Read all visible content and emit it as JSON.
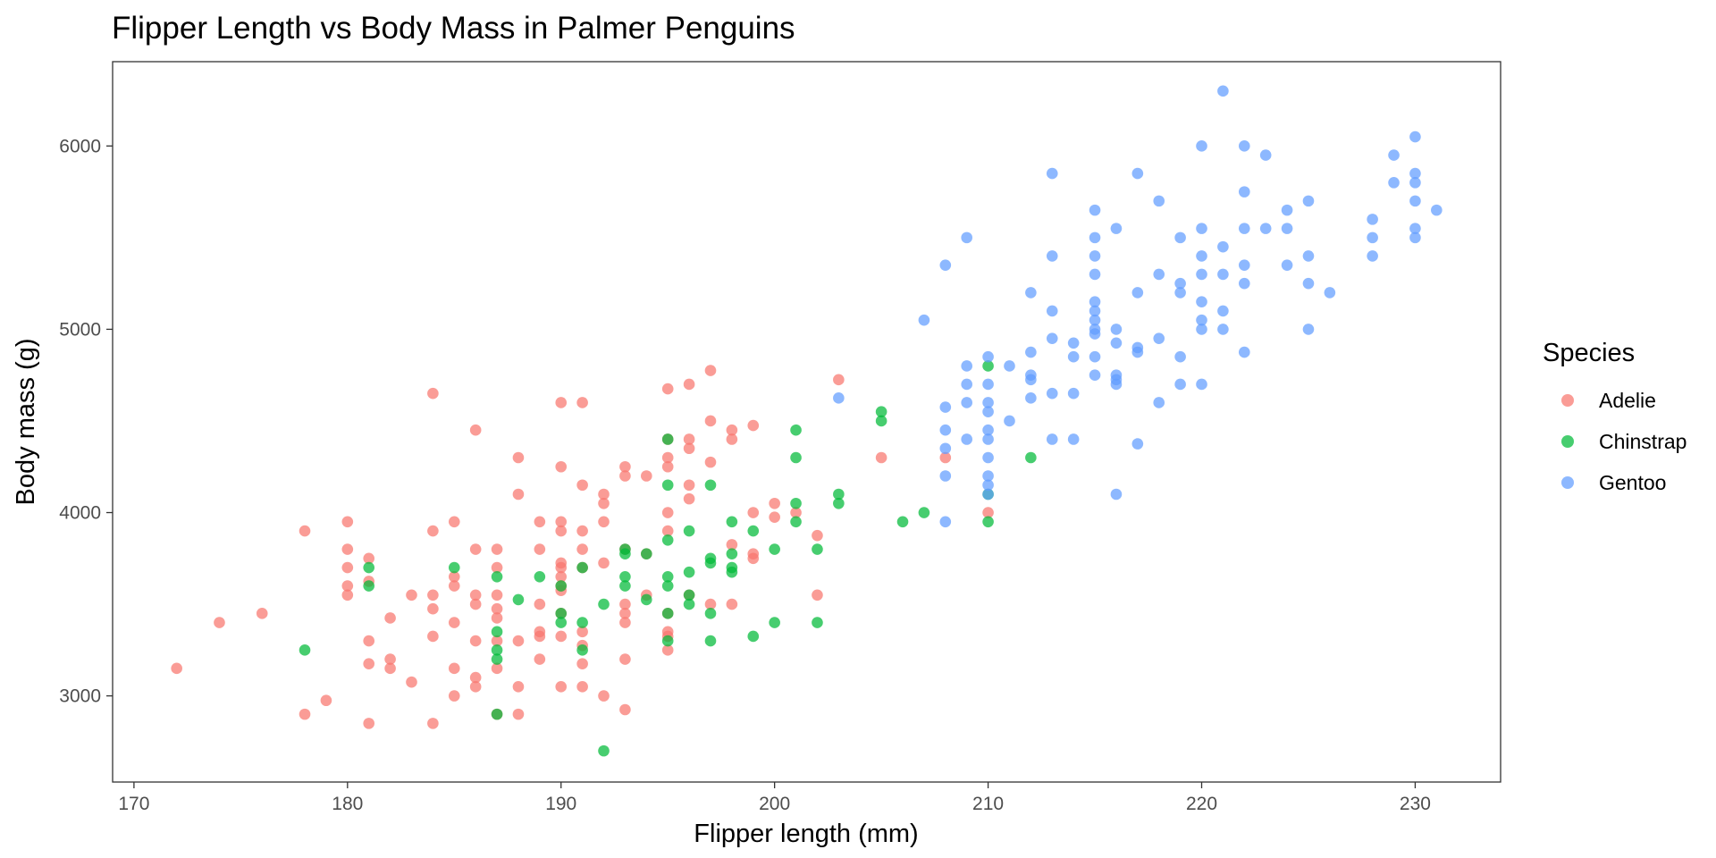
{
  "chart_data": {
    "type": "scatter",
    "title": "Flipper Length vs Body Mass in Palmer Penguins",
    "xlabel": "Flipper length (mm)",
    "ylabel": "Body mass (g)",
    "xlim": [
      169,
      234
    ],
    "ylim": [
      2530,
      6460
    ],
    "xticks": [
      170,
      180,
      190,
      200,
      210,
      220,
      230
    ],
    "yticks": [
      3000,
      4000,
      5000,
      6000
    ],
    "grid": false,
    "legend": {
      "title": "Species",
      "placement": "right"
    },
    "series": [
      {
        "name": "Adelie",
        "color": "#F8766D",
        "points": [
          [
            172,
            3150
          ],
          [
            174,
            3400
          ],
          [
            176,
            3450
          ],
          [
            178,
            3900
          ],
          [
            178,
            2900
          ],
          [
            179,
            2975
          ],
          [
            180,
            3950
          ],
          [
            180,
            3800
          ],
          [
            180,
            3700
          ],
          [
            180,
            3600
          ],
          [
            180,
            3550
          ],
          [
            181,
            3750
          ],
          [
            181,
            3625
          ],
          [
            181,
            3300
          ],
          [
            181,
            3175
          ],
          [
            181,
            2850
          ],
          [
            182,
            3425
          ],
          [
            182,
            3200
          ],
          [
            182,
            3150
          ],
          [
            183,
            3550
          ],
          [
            183,
            3075
          ],
          [
            184,
            4650
          ],
          [
            184,
            3900
          ],
          [
            184,
            3550
          ],
          [
            184,
            3475
          ],
          [
            184,
            3325
          ],
          [
            184,
            2850
          ],
          [
            185,
            3950
          ],
          [
            185,
            3650
          ],
          [
            185,
            3600
          ],
          [
            185,
            3400
          ],
          [
            185,
            3150
          ],
          [
            185,
            3000
          ],
          [
            186,
            4450
          ],
          [
            186,
            3800
          ],
          [
            186,
            3550
          ],
          [
            186,
            3500
          ],
          [
            186,
            3300
          ],
          [
            186,
            3100
          ],
          [
            186,
            3050
          ],
          [
            187,
            3800
          ],
          [
            187,
            3700
          ],
          [
            187,
            3550
          ],
          [
            187,
            3475
          ],
          [
            187,
            3425
          ],
          [
            187,
            3300
          ],
          [
            187,
            3150
          ],
          [
            187,
            2900
          ],
          [
            188,
            4300
          ],
          [
            188,
            4100
          ],
          [
            188,
            3300
          ],
          [
            188,
            3050
          ],
          [
            188,
            2900
          ],
          [
            189,
            3950
          ],
          [
            189,
            3800
          ],
          [
            189,
            3500
          ],
          [
            189,
            3350
          ],
          [
            189,
            3325
          ],
          [
            189,
            3200
          ],
          [
            190,
            4600
          ],
          [
            190,
            4250
          ],
          [
            190,
            3950
          ],
          [
            190,
            3900
          ],
          [
            190,
            3725
          ],
          [
            190,
            3700
          ],
          [
            190,
            3650
          ],
          [
            190,
            3600
          ],
          [
            190,
            3575
          ],
          [
            190,
            3450
          ],
          [
            190,
            3325
          ],
          [
            190,
            3050
          ],
          [
            191,
            4600
          ],
          [
            191,
            4150
          ],
          [
            191,
            3900
          ],
          [
            191,
            3800
          ],
          [
            191,
            3700
          ],
          [
            191,
            3350
          ],
          [
            191,
            3275
          ],
          [
            191,
            3175
          ],
          [
            191,
            3050
          ],
          [
            192,
            4100
          ],
          [
            192,
            4050
          ],
          [
            192,
            3950
          ],
          [
            192,
            3725
          ],
          [
            192,
            3000
          ],
          [
            193,
            4250
          ],
          [
            193,
            4200
          ],
          [
            193,
            3800
          ],
          [
            193,
            3500
          ],
          [
            193,
            3450
          ],
          [
            193,
            3400
          ],
          [
            193,
            3200
          ],
          [
            193,
            2925
          ],
          [
            194,
            4200
          ],
          [
            194,
            3775
          ],
          [
            194,
            3550
          ],
          [
            195,
            4675
          ],
          [
            195,
            4400
          ],
          [
            195,
            4300
          ],
          [
            195,
            4250
          ],
          [
            195,
            4000
          ],
          [
            195,
            3900
          ],
          [
            195,
            3450
          ],
          [
            195,
            3350
          ],
          [
            195,
            3325
          ],
          [
            195,
            3250
          ],
          [
            196,
            4700
          ],
          [
            196,
            4400
          ],
          [
            196,
            4350
          ],
          [
            196,
            4150
          ],
          [
            196,
            4075
          ],
          [
            196,
            3550
          ],
          [
            197,
            4775
          ],
          [
            197,
            4500
          ],
          [
            197,
            4275
          ],
          [
            197,
            3500
          ],
          [
            198,
            4450
          ],
          [
            198,
            4400
          ],
          [
            198,
            3825
          ],
          [
            198,
            3500
          ],
          [
            199,
            4475
          ],
          [
            199,
            4000
          ],
          [
            199,
            3775
          ],
          [
            199,
            3750
          ],
          [
            200,
            4050
          ],
          [
            200,
            3975
          ],
          [
            201,
            4000
          ],
          [
            202,
            3875
          ],
          [
            202,
            3550
          ],
          [
            203,
            4725
          ],
          [
            205,
            4300
          ],
          [
            208,
            4300
          ],
          [
            210,
            4000
          ]
        ]
      },
      {
        "name": "Chinstrap",
        "color": "#00BA38",
        "points": [
          [
            178,
            3250
          ],
          [
            181,
            3700
          ],
          [
            181,
            3600
          ],
          [
            185,
            3700
          ],
          [
            187,
            3650
          ],
          [
            187,
            3350
          ],
          [
            187,
            3250
          ],
          [
            187,
            3200
          ],
          [
            187,
            2900
          ],
          [
            188,
            3525
          ],
          [
            189,
            3650
          ],
          [
            190,
            3600
          ],
          [
            190,
            3450
          ],
          [
            190,
            3400
          ],
          [
            191,
            3700
          ],
          [
            191,
            3400
          ],
          [
            191,
            3250
          ],
          [
            192,
            3500
          ],
          [
            192,
            2700
          ],
          [
            193,
            3800
          ],
          [
            193,
            3775
          ],
          [
            193,
            3650
          ],
          [
            193,
            3600
          ],
          [
            194,
            3775
          ],
          [
            194,
            3525
          ],
          [
            195,
            4400
          ],
          [
            195,
            4150
          ],
          [
            195,
            3850
          ],
          [
            195,
            3650
          ],
          [
            195,
            3600
          ],
          [
            195,
            3450
          ],
          [
            195,
            3300
          ],
          [
            196,
            3900
          ],
          [
            196,
            3675
          ],
          [
            196,
            3550
          ],
          [
            196,
            3500
          ],
          [
            197,
            4150
          ],
          [
            197,
            3750
          ],
          [
            197,
            3725
          ],
          [
            197,
            3450
          ],
          [
            197,
            3300
          ],
          [
            198,
            3950
          ],
          [
            198,
            3775
          ],
          [
            198,
            3700
          ],
          [
            198,
            3675
          ],
          [
            199,
            3900
          ],
          [
            199,
            3325
          ],
          [
            200,
            3800
          ],
          [
            200,
            3400
          ],
          [
            201,
            4450
          ],
          [
            201,
            4300
          ],
          [
            201,
            4050
          ],
          [
            201,
            3950
          ],
          [
            202,
            3800
          ],
          [
            202,
            3400
          ],
          [
            203,
            4100
          ],
          [
            203,
            4050
          ],
          [
            205,
            4550
          ],
          [
            205,
            4500
          ],
          [
            206,
            3950
          ],
          [
            207,
            4000
          ],
          [
            210,
            4800
          ],
          [
            210,
            4100
          ],
          [
            210,
            3950
          ],
          [
            212,
            4300
          ]
        ]
      },
      {
        "name": "Gentoo",
        "color": "#619CFF",
        "points": [
          [
            203,
            4625
          ],
          [
            207,
            5050
          ],
          [
            208,
            5350
          ],
          [
            208,
            4575
          ],
          [
            208,
            4450
          ],
          [
            208,
            4350
          ],
          [
            208,
            4200
          ],
          [
            208,
            3950
          ],
          [
            209,
            5500
          ],
          [
            209,
            4800
          ],
          [
            209,
            4700
          ],
          [
            209,
            4600
          ],
          [
            209,
            4400
          ],
          [
            210,
            4850
          ],
          [
            210,
            4700
          ],
          [
            210,
            4600
          ],
          [
            210,
            4550
          ],
          [
            210,
            4450
          ],
          [
            210,
            4400
          ],
          [
            210,
            4300
          ],
          [
            210,
            4200
          ],
          [
            210,
            4150
          ],
          [
            210,
            4100
          ],
          [
            211,
            4800
          ],
          [
            211,
            4500
          ],
          [
            212,
            5200
          ],
          [
            212,
            4875
          ],
          [
            212,
            4750
          ],
          [
            212,
            4725
          ],
          [
            212,
            4625
          ],
          [
            213,
            5850
          ],
          [
            213,
            5400
          ],
          [
            213,
            5100
          ],
          [
            213,
            4950
          ],
          [
            213,
            4650
          ],
          [
            213,
            4400
          ],
          [
            214,
            4925
          ],
          [
            214,
            4850
          ],
          [
            214,
            4650
          ],
          [
            214,
            4400
          ],
          [
            215,
            5650
          ],
          [
            215,
            5500
          ],
          [
            215,
            5400
          ],
          [
            215,
            5300
          ],
          [
            215,
            5150
          ],
          [
            215,
            5100
          ],
          [
            215,
            5050
          ],
          [
            215,
            5000
          ],
          [
            215,
            4975
          ],
          [
            215,
            4850
          ],
          [
            215,
            4750
          ],
          [
            216,
            5550
          ],
          [
            216,
            5000
          ],
          [
            216,
            4925
          ],
          [
            216,
            4750
          ],
          [
            216,
            4725
          ],
          [
            216,
            4700
          ],
          [
            216,
            4100
          ],
          [
            217,
            5850
          ],
          [
            217,
            5200
          ],
          [
            217,
            4900
          ],
          [
            217,
            4875
          ],
          [
            217,
            4375
          ],
          [
            218,
            5700
          ],
          [
            218,
            5300
          ],
          [
            218,
            4950
          ],
          [
            218,
            4600
          ],
          [
            219,
            5500
          ],
          [
            219,
            5250
          ],
          [
            219,
            5200
          ],
          [
            219,
            4850
          ],
          [
            219,
            4700
          ],
          [
            220,
            6000
          ],
          [
            220,
            5550
          ],
          [
            220,
            5400
          ],
          [
            220,
            5300
          ],
          [
            220,
            5150
          ],
          [
            220,
            5050
          ],
          [
            220,
            5000
          ],
          [
            220,
            4700
          ],
          [
            221,
            6300
          ],
          [
            221,
            5450
          ],
          [
            221,
            5300
          ],
          [
            221,
            5100
          ],
          [
            221,
            5000
          ],
          [
            222,
            6000
          ],
          [
            222,
            5750
          ],
          [
            222,
            5550
          ],
          [
            222,
            5350
          ],
          [
            222,
            5250
          ],
          [
            222,
            4875
          ],
          [
            223,
            5950
          ],
          [
            223,
            5550
          ],
          [
            224,
            5650
          ],
          [
            224,
            5550
          ],
          [
            224,
            5350
          ],
          [
            225,
            5700
          ],
          [
            225,
            5400
          ],
          [
            225,
            5250
          ],
          [
            225,
            5000
          ],
          [
            226,
            5200
          ],
          [
            228,
            5600
          ],
          [
            228,
            5500
          ],
          [
            228,
            5400
          ],
          [
            229,
            5950
          ],
          [
            229,
            5800
          ],
          [
            230,
            6050
          ],
          [
            230,
            5850
          ],
          [
            230,
            5800
          ],
          [
            230,
            5700
          ],
          [
            230,
            5550
          ],
          [
            230,
            5500
          ],
          [
            231,
            5650
          ]
        ]
      }
    ]
  }
}
